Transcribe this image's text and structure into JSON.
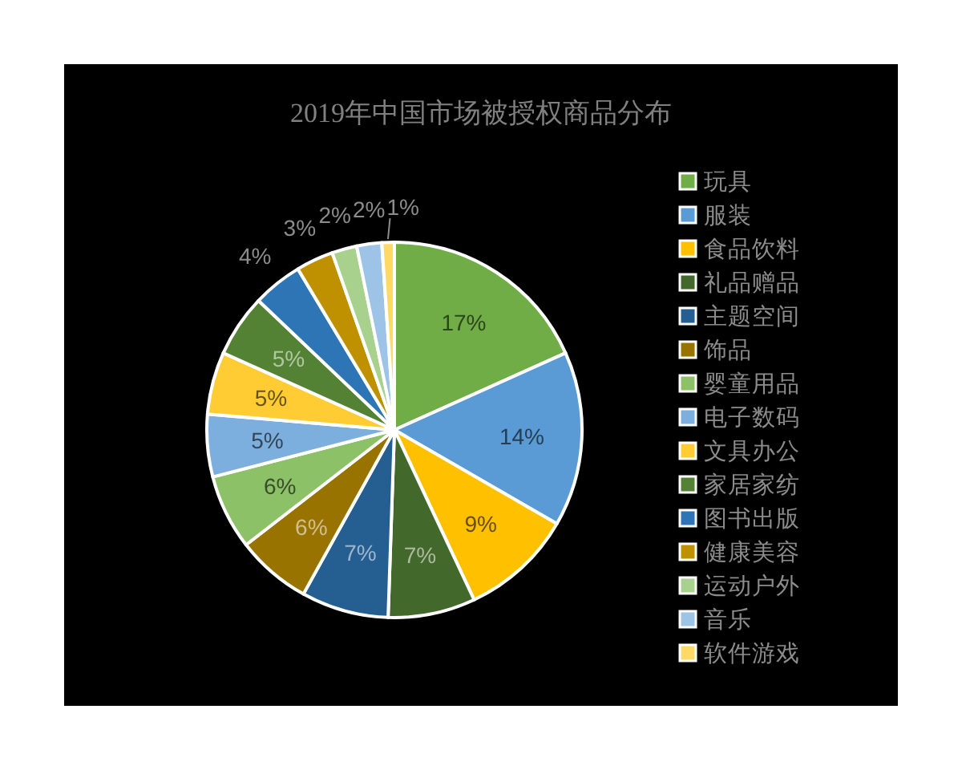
{
  "chart_data": {
    "type": "pie",
    "title": "2019年中国市场被授权商品分布",
    "categories": [
      "玩具",
      "服装",
      "食品饮料",
      "礼品赠品",
      "主题空间",
      "饰品",
      "婴童用品",
      "电子数码",
      "文具办公",
      "家居家纺",
      "图书出版",
      "健康美容",
      "运动户外",
      "音乐",
      "软件游戏"
    ],
    "values": [
      17,
      14,
      9,
      7,
      7,
      6,
      6,
      5,
      5,
      5,
      4,
      3,
      2,
      2,
      1
    ],
    "value_labels": [
      "17%",
      "14%",
      "9%",
      "7%",
      "7%",
      "6%",
      "6%",
      "5%",
      "5%",
      "5%",
      "4%",
      "3%",
      "2%",
      "2%",
      "1%"
    ],
    "colors": [
      "#70ad47",
      "#5b9bd5",
      "#ffc000",
      "#43682b",
      "#255e91",
      "#997300",
      "#8cc168",
      "#7cafdd",
      "#ffcd33",
      "#548235",
      "#2e75b6",
      "#bf9000",
      "#a9d18e",
      "#9dc3e6",
      "#ffd966"
    ],
    "legend": "right"
  }
}
